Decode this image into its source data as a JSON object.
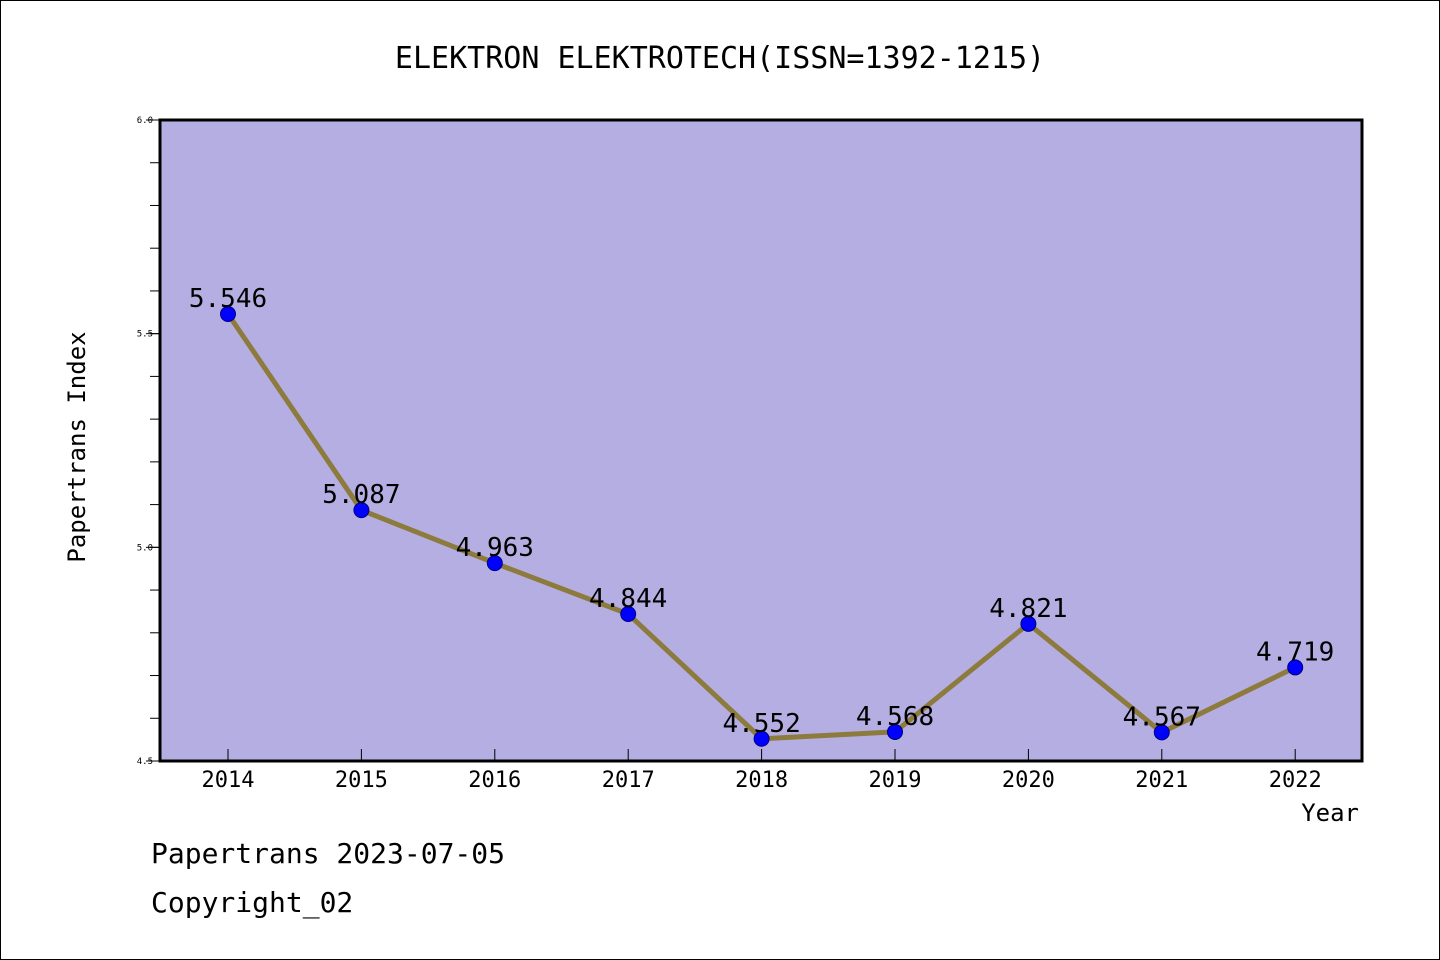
{
  "chart_data": {
    "type": "line",
    "title": "ELEKTRON ELEKTROTECH(ISSN=1392-1215)",
    "xlabel": "Year",
    "ylabel": "Papertrans Index",
    "categories": [
      "2014",
      "2015",
      "2016",
      "2017",
      "2018",
      "2019",
      "2020",
      "2021",
      "2022"
    ],
    "values": [
      5.546,
      5.087,
      4.963,
      4.844,
      4.552,
      4.568,
      4.821,
      4.567,
      4.719
    ],
    "data_labels": [
      "5.546",
      "5.087",
      "4.963",
      "4.844",
      "4.552",
      "4.568",
      "4.821",
      "4.567",
      "4.719"
    ],
    "ylim": [
      4.5,
      6.0
    ],
    "y_ticks": [
      4.5,
      5.0,
      5.5,
      6.0
    ],
    "y_tick_labels": [
      "4.5",
      "5.0",
      "5.5",
      "6.0"
    ],
    "y_minor_step": 0.1,
    "grid": false,
    "legend": "none",
    "colors": {
      "plot_background": "#b5aee2",
      "line": "#8c7b3c",
      "marker": "#0000ff",
      "marker_edge": "#000080"
    }
  },
  "footer": {
    "date_text": "Papertrans 2023-07-05",
    "copyright_text": "Copyright_02"
  }
}
